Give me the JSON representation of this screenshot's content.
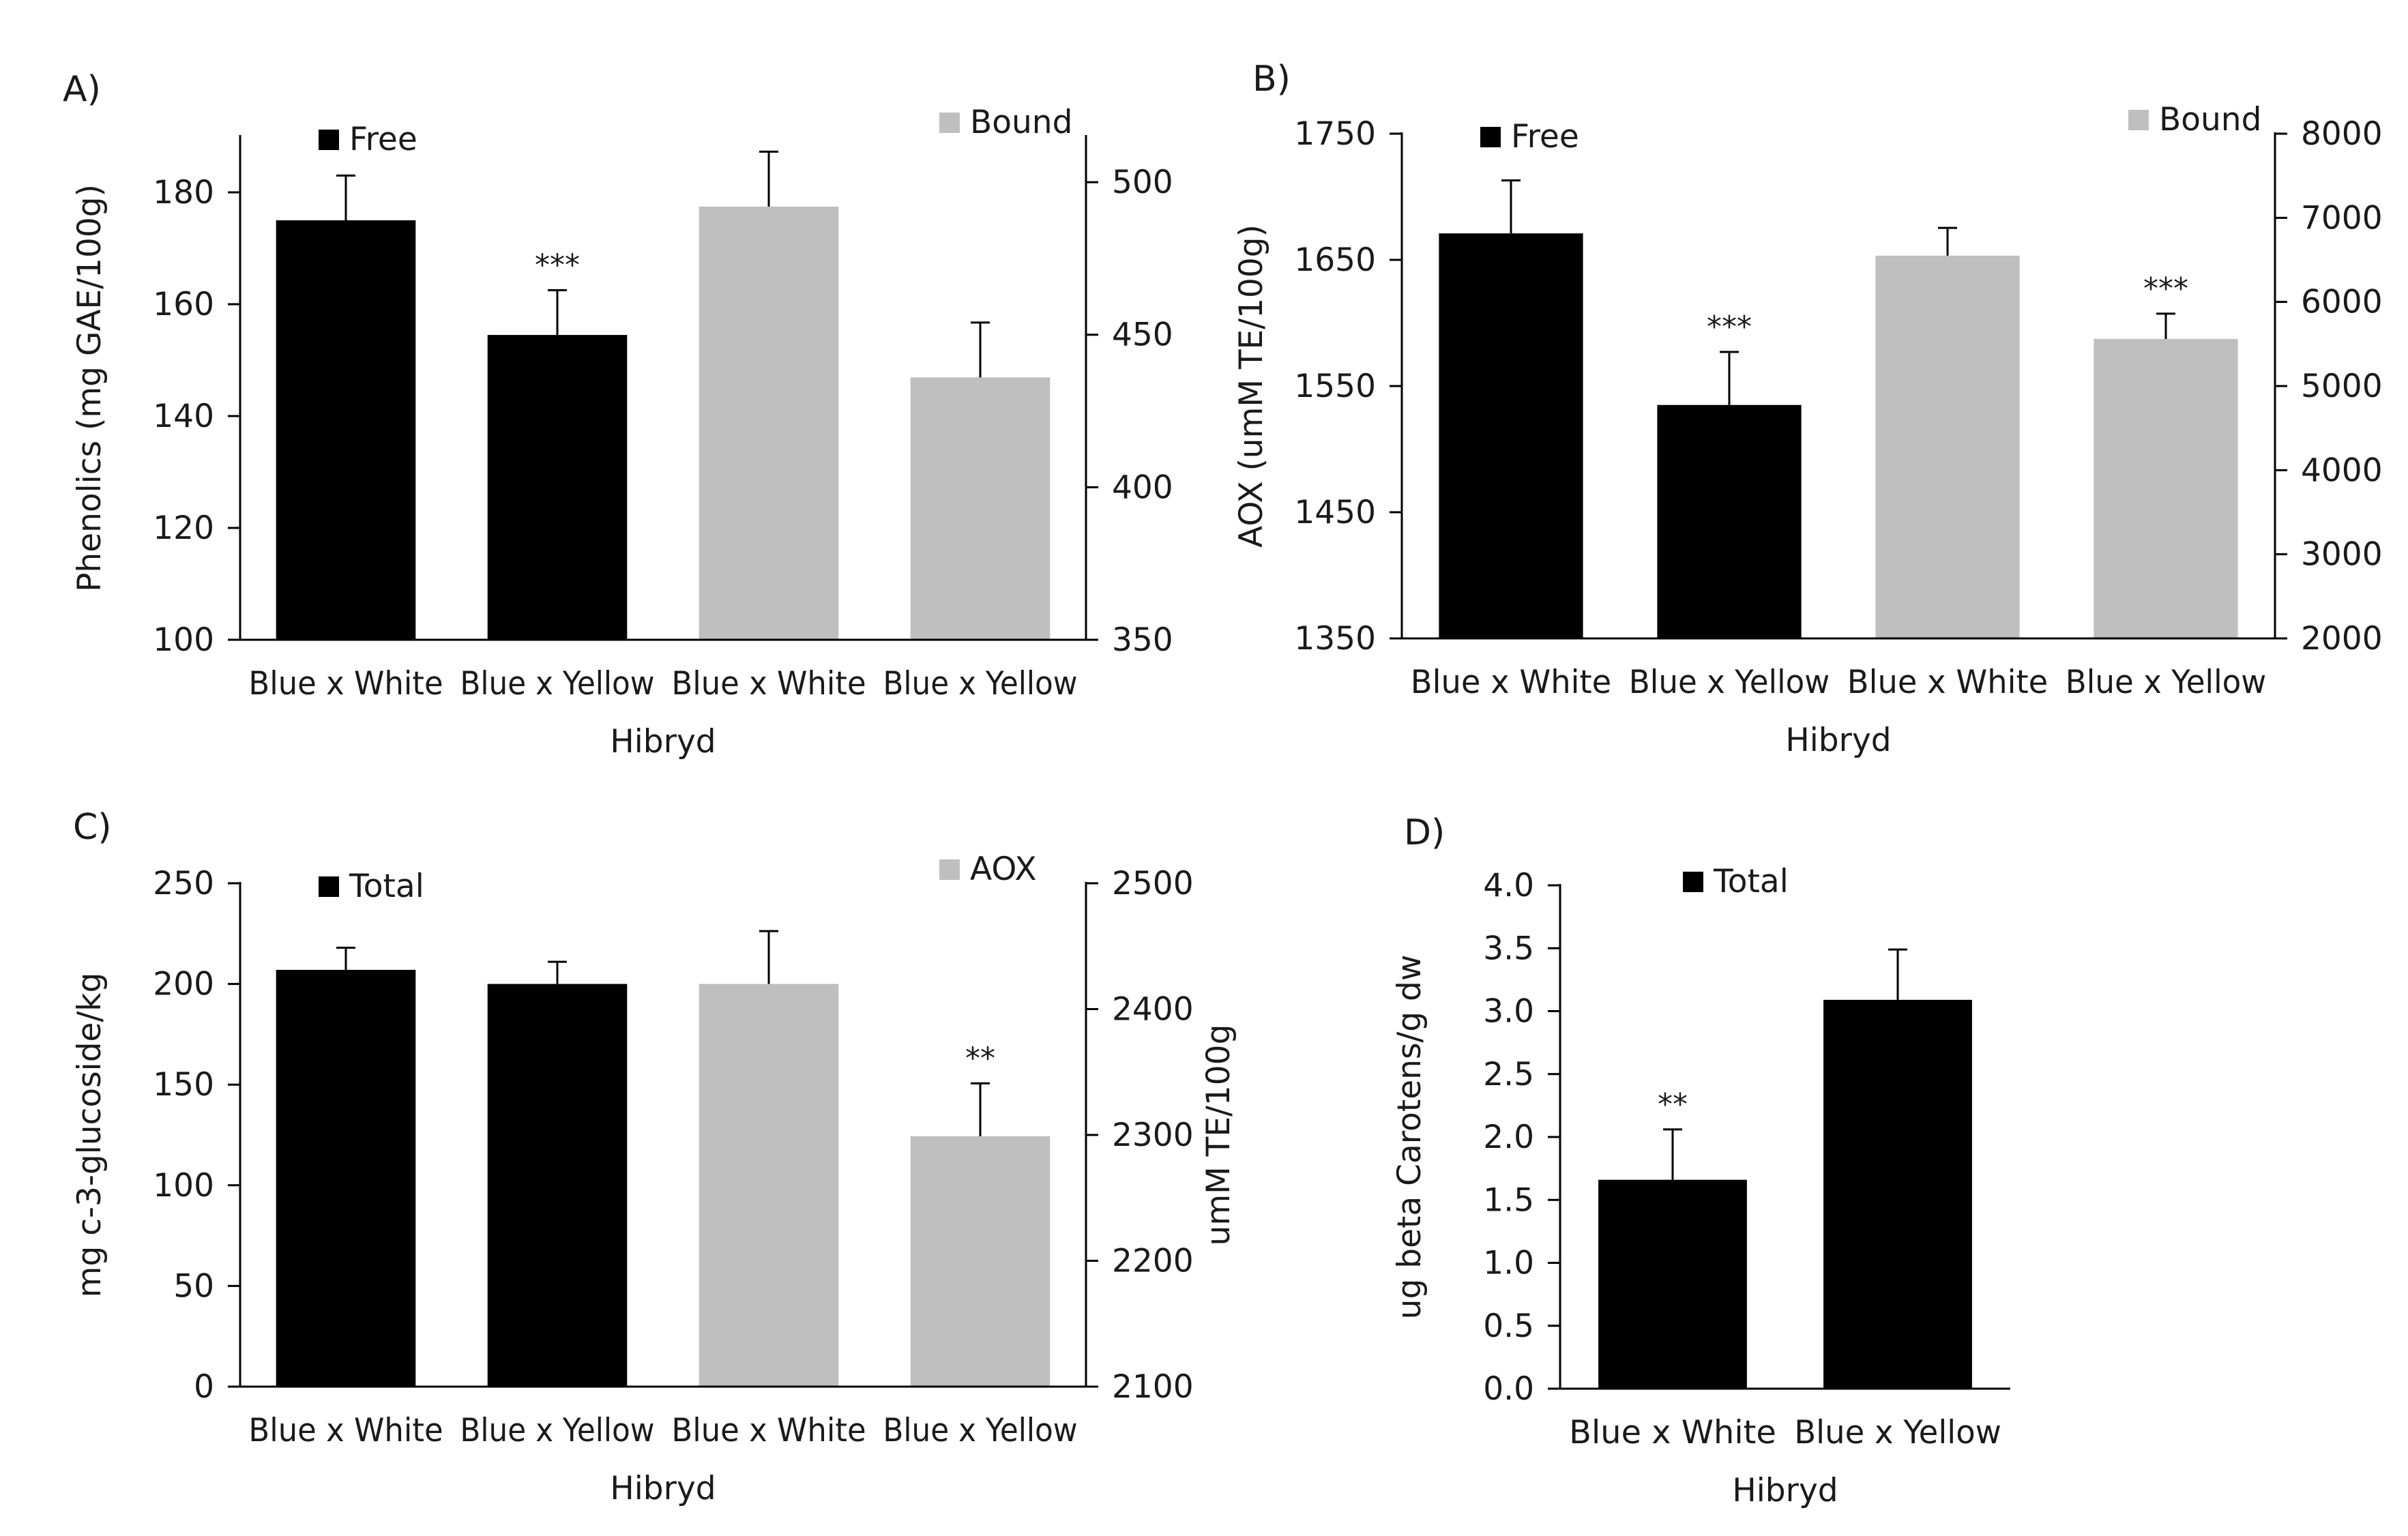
{
  "colors": {
    "free": "#000000",
    "bound": "#bfbfbf",
    "axis": "#000000",
    "text": "#1a1a1a"
  },
  "chart_data": [
    {
      "panel": "A)",
      "type": "bar",
      "xlabel": "Hibryd",
      "ylabel_left": "Phenolics (mg GAE/100g)",
      "ylabel_right": "",
      "left_axis": {
        "min": 100,
        "max": 190,
        "ticks": [
          100,
          120,
          140,
          160,
          180
        ],
        "tick_labels": [
          "100",
          "120",
          "140",
          "160",
          "180"
        ]
      },
      "right_axis": {
        "min": 350,
        "max": 515,
        "ticks": [
          350,
          400,
          450,
          500
        ],
        "tick_labels": [
          "350",
          "400",
          "450",
          "500"
        ]
      },
      "categories": [
        "Blue x White",
        "Blue x Yellow",
        "Blue x White",
        "Blue x Yellow"
      ],
      "series": [
        {
          "name": "Free",
          "color_key": "free",
          "axis": "left",
          "positions": [
            0,
            1
          ],
          "values": [
            175,
            154.5
          ],
          "errors": [
            8,
            8
          ],
          "marks": [
            "",
            "***"
          ]
        },
        {
          "name": "Bound",
          "color_key": "bound",
          "axis": "right",
          "positions": [
            2,
            3
          ],
          "values": [
            492,
            436
          ],
          "errors": [
            18,
            18
          ],
          "marks": [
            "",
            ""
          ]
        }
      ],
      "legend": [
        {
          "label": "Free",
          "color_key": "free",
          "placement": "top-left"
        },
        {
          "label": "Bound",
          "color_key": "bound",
          "placement": "top-right"
        }
      ]
    },
    {
      "panel": "B)",
      "type": "bar",
      "xlabel": "Hibryd",
      "ylabel_left": "AOX (umM TE/100g)",
      "ylabel_right": "",
      "left_axis": {
        "min": 1350,
        "max": 1750,
        "ticks": [
          1350,
          1450,
          1550,
          1650,
          1750
        ],
        "tick_labels": [
          "1350",
          "1450",
          "1550",
          "1650",
          "1750"
        ]
      },
      "right_axis": {
        "min": 2000,
        "max": 8000,
        "ticks": [
          2000,
          3000,
          4000,
          5000,
          6000,
          7000,
          8000
        ],
        "tick_labels": [
          "2000",
          "3000",
          "4000",
          "5000",
          "6000",
          "7000",
          "8000"
        ]
      },
      "categories": [
        "Blue x White",
        "Blue x Yellow",
        "Blue x White",
        "Blue x Yellow"
      ],
      "series": [
        {
          "name": "Free",
          "color_key": "free",
          "axis": "left",
          "positions": [
            0,
            1
          ],
          "values": [
            1671,
            1535
          ],
          "errors": [
            42,
            42
          ],
          "marks": [
            "",
            "***"
          ]
        },
        {
          "name": "Bound",
          "color_key": "bound",
          "axis": "right",
          "positions": [
            2,
            3
          ],
          "values": [
            6550,
            5560
          ],
          "errors": [
            330,
            300
          ],
          "marks": [
            "",
            "***"
          ]
        }
      ],
      "legend": [
        {
          "label": "Free",
          "color_key": "free",
          "placement": "top-left"
        },
        {
          "label": "Bound",
          "color_key": "bound",
          "placement": "top-right"
        }
      ]
    },
    {
      "panel": "C)",
      "type": "bar",
      "xlabel": "Hibryd",
      "ylabel_left": "mg c-3-glucoside/kg",
      "ylabel_right": "umM TE/100g",
      "left_axis": {
        "min": 0,
        "max": 250,
        "ticks": [
          0,
          50,
          100,
          150,
          200,
          250
        ],
        "tick_labels": [
          "0",
          "50",
          "100",
          "150",
          "200",
          "250"
        ]
      },
      "right_axis": {
        "min": 2100,
        "max": 2500,
        "ticks": [
          2100,
          2200,
          2300,
          2400,
          2500
        ],
        "tick_labels": [
          "2100",
          "2200",
          "2300",
          "2400",
          "2500"
        ]
      },
      "categories": [
        "Blue x White",
        "Blue x Yellow",
        "Blue x White",
        "Blue x Yellow"
      ],
      "series": [
        {
          "name": "Total",
          "color_key": "free",
          "axis": "left",
          "positions": [
            0,
            1
          ],
          "values": [
            207,
            200
          ],
          "errors": [
            11,
            11
          ],
          "marks": [
            "",
            ""
          ]
        },
        {
          "name": "AOX",
          "color_key": "bound",
          "axis": "right",
          "positions": [
            2,
            3
          ],
          "values": [
            2420,
            2299
          ],
          "errors": [
            42,
            42
          ],
          "marks": [
            "",
            "**"
          ]
        }
      ],
      "legend": [
        {
          "label": "Total",
          "color_key": "free",
          "placement": "top-left"
        },
        {
          "label": "AOX",
          "color_key": "bound",
          "placement": "top-right"
        }
      ]
    },
    {
      "panel": "D)",
      "type": "bar",
      "xlabel": "Hibryd",
      "ylabel_left": "ug beta Carotens/g dw",
      "ylabel_right": "",
      "left_axis": {
        "min": 0,
        "max": 4,
        "ticks": [
          0,
          0.5,
          1,
          1.5,
          2,
          2.5,
          3,
          3.5,
          4
        ],
        "tick_labels": [
          "0.0",
          "0.5",
          "1.0",
          "1.5",
          "2.0",
          "2.5",
          "3.0",
          "3.5",
          "4.0"
        ]
      },
      "right_axis": null,
      "categories": [
        "Blue x White",
        "Blue x Yellow"
      ],
      "series": [
        {
          "name": "Total",
          "color_key": "free",
          "axis": "left",
          "positions": [
            0,
            1
          ],
          "values": [
            1.66,
            3.09
          ],
          "errors": [
            0.4,
            0.4
          ],
          "marks": [
            "**",
            ""
          ]
        }
      ],
      "legend": [
        {
          "label": "Total",
          "color_key": "free",
          "placement": "top-left"
        }
      ]
    }
  ]
}
